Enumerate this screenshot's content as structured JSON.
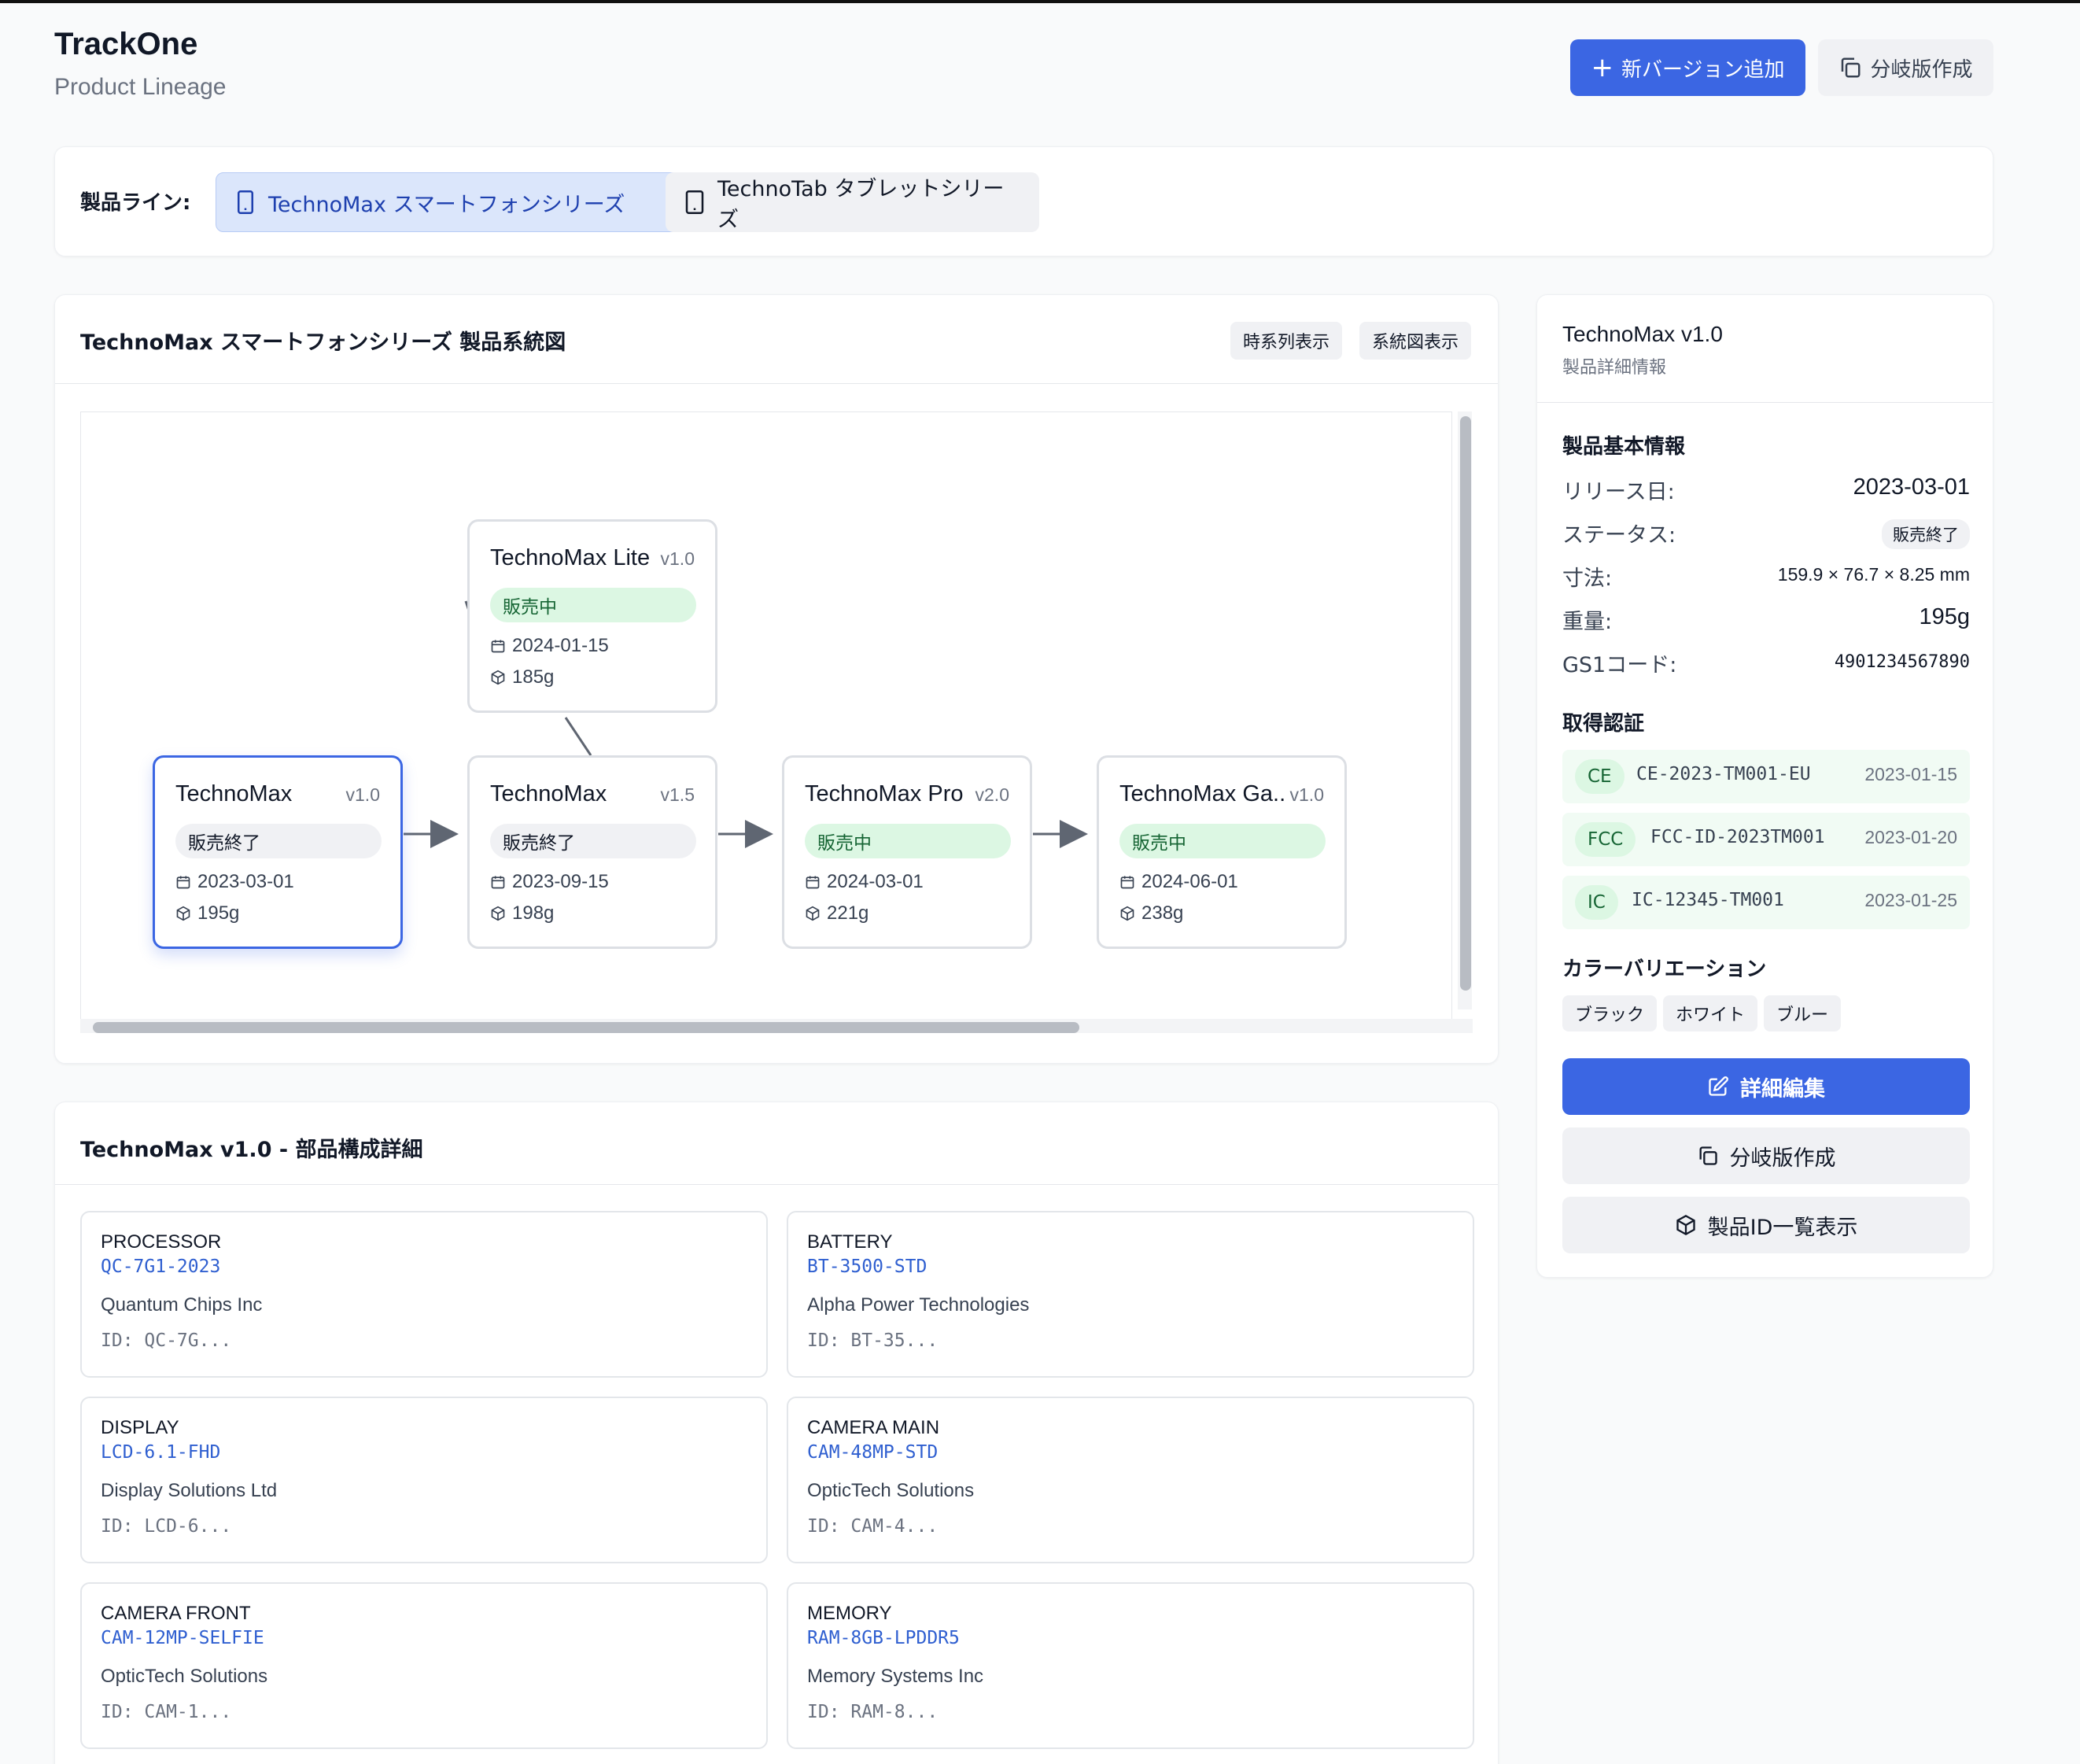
{
  "header": {
    "title": "TrackOne",
    "subtitle": "Product Lineage",
    "add_version_label": "新バージョン追加",
    "branch_label": "分岐版作成"
  },
  "product_lines": {
    "label": "製品ライン:",
    "items": [
      {
        "label": "TechnoMax スマートフォンシリーズ",
        "active": true
      },
      {
        "label": "TechnoTab タブレットシリーズ",
        "active": false
      }
    ]
  },
  "diagram": {
    "title": "TechnoMax スマートフォンシリーズ 製品系統図",
    "views": [
      "時系列表示",
      "系統図表示"
    ],
    "nodes": [
      {
        "name": "TechnoMax Lite",
        "version": "v1.0",
        "status": "販売中",
        "date": "2024-01-15",
        "weight": "185g"
      },
      {
        "name": "TechnoMax",
        "version": "v1.0",
        "status": "販売終了",
        "date": "2023-03-01",
        "weight": "195g",
        "selected": true
      },
      {
        "name": "TechnoMax",
        "version": "v1.5",
        "status": "販売終了",
        "date": "2023-09-15",
        "weight": "198g"
      },
      {
        "name": "TechnoMax Pro",
        "version": "v2.0",
        "status": "販売中",
        "date": "2024-03-01",
        "weight": "221g"
      },
      {
        "name": "TechnoMax Ga...",
        "version": "v1.0",
        "status": "販売中",
        "date": "2024-06-01",
        "weight": "238g"
      }
    ]
  },
  "details": {
    "title": "TechnoMax v1.0",
    "subtitle": "製品詳細情報",
    "basic_heading": "製品基本情報",
    "rows": [
      {
        "key": "リリース日:",
        "value": "2023-03-01"
      },
      {
        "key": "ステータス:",
        "value": "販売終了"
      },
      {
        "key": "寸法:",
        "value": "159.9 × 76.7 × 8.25 mm"
      },
      {
        "key": "重量:",
        "value": "195g"
      },
      {
        "key": "GS1コード:",
        "value": "4901234567890"
      }
    ],
    "cert_heading": "取得認証",
    "certs": [
      {
        "tag": "CE",
        "id": "CE-2023-TM001-EU",
        "date": "2023-01-15"
      },
      {
        "tag": "FCC",
        "id": "FCC-ID-2023TM001",
        "date": "2023-01-20"
      },
      {
        "tag": "IC",
        "id": "IC-12345-TM001",
        "date": "2023-01-25"
      }
    ],
    "color_heading": "カラーバリエーション",
    "colors": [
      "ブラック",
      "ホワイト",
      "ブルー"
    ],
    "edit_label": "詳細編集",
    "branch_label": "分岐版作成",
    "ids_label": "製品ID一覧表示"
  },
  "parts": {
    "title": "TechnoMax v1.0 - 部品構成詳細",
    "items": [
      {
        "type": "PROCESSOR",
        "code": "QC-7G1-2023",
        "maker": "Quantum Chips Inc",
        "id": "ID: QC-7G..."
      },
      {
        "type": "BATTERY",
        "code": "BT-3500-STD",
        "maker": "Alpha Power Technologies",
        "id": "ID: BT-35..."
      },
      {
        "type": "DISPLAY",
        "code": "LCD-6.1-FHD",
        "maker": "Display Solutions Ltd",
        "id": "ID: LCD-6..."
      },
      {
        "type": "CAMERA MAIN",
        "code": "CAM-48MP-STD",
        "maker": "OpticTech Solutions",
        "id": "ID: CAM-4..."
      },
      {
        "type": "CAMERA FRONT",
        "code": "CAM-12MP-SELFIE",
        "maker": "OpticTech Solutions",
        "id": "ID: CAM-1..."
      },
      {
        "type": "MEMORY",
        "code": "RAM-8GB-LPDDR5",
        "maker": "Memory Systems Inc",
        "id": "ID: RAM-8..."
      }
    ]
  },
  "colors": {
    "accent": "#3b66e3",
    "sale": "#166534",
    "sale_bg": "#dcf7e3"
  }
}
